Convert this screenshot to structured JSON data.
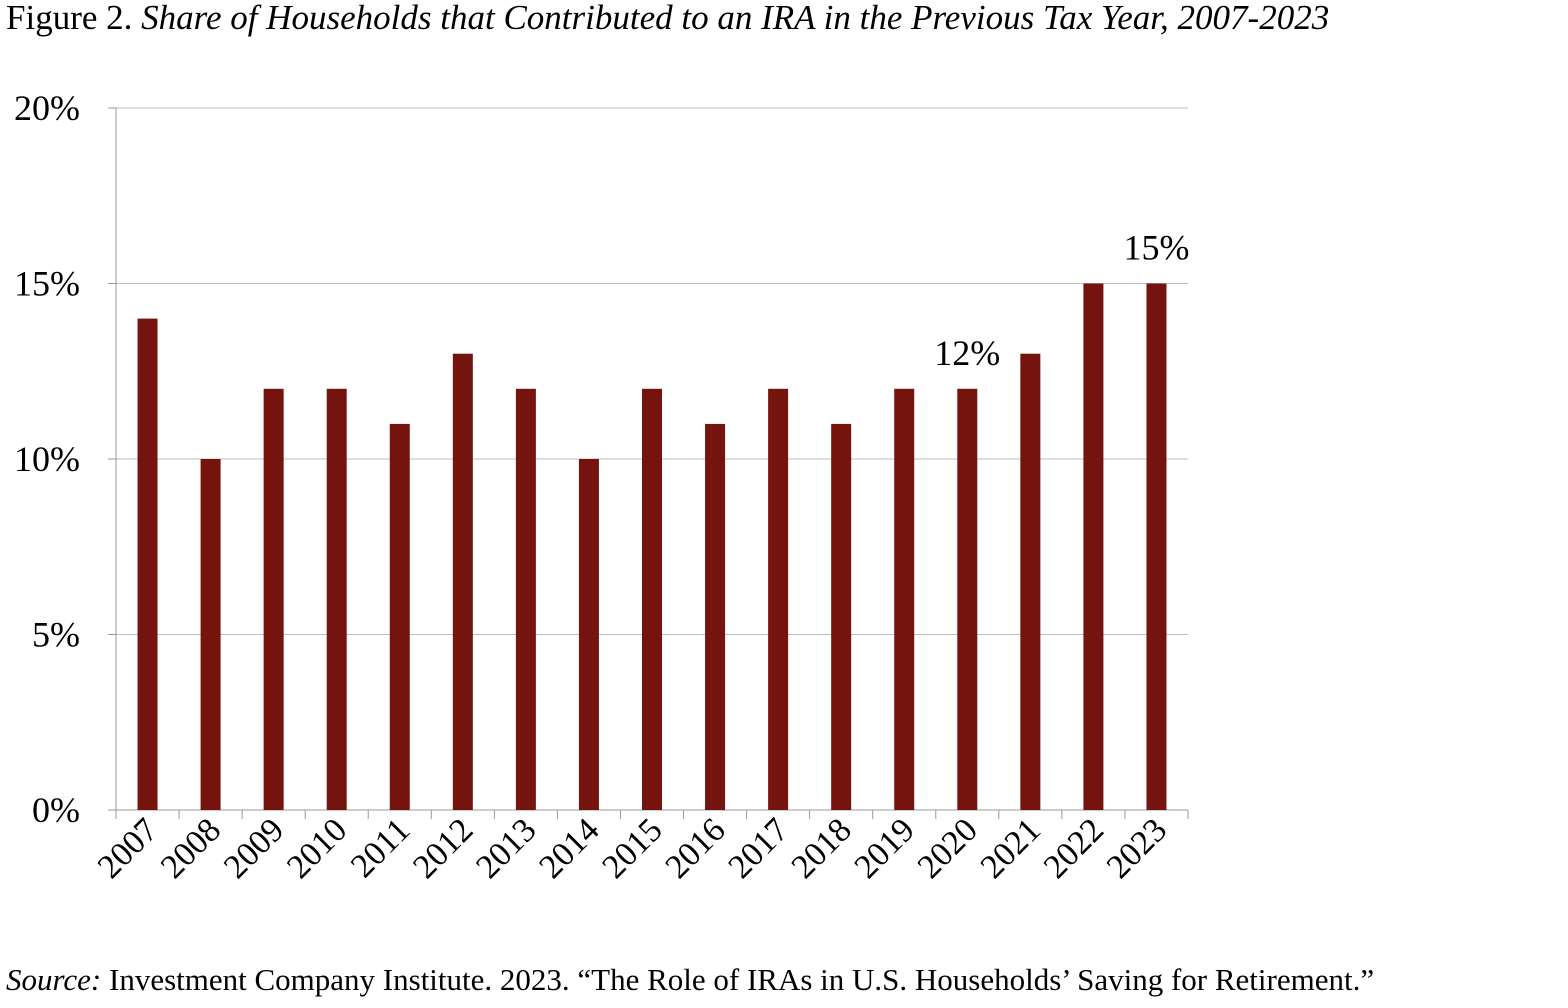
{
  "chart_data": {
    "type": "bar",
    "title_prefix": "Figure 2.",
    "title": "Share of Households that Contributed to an IRA in the Previous Tax Year, 2007-2023",
    "categories": [
      "2007",
      "2008",
      "2009",
      "2010",
      "2011",
      "2012",
      "2013",
      "2014",
      "2015",
      "2016",
      "2017",
      "2018",
      "2019",
      "2020",
      "2021",
      "2022",
      "2023"
    ],
    "values": [
      14,
      10,
      12,
      12,
      11,
      13,
      12,
      10,
      12,
      11,
      12,
      11,
      12,
      12,
      13,
      15,
      15
    ],
    "ylim": [
      0,
      20
    ],
    "yticks": [
      0,
      5,
      10,
      15,
      20
    ],
    "ytick_labels": [
      "0%",
      "5%",
      "10%",
      "15%",
      "20%"
    ],
    "xlabel": "",
    "ylabel": "",
    "grid": true,
    "bar_color": "#75140f",
    "annotations": [
      {
        "category": "2020",
        "text": "12%"
      },
      {
        "category": "2023",
        "text": "15%"
      }
    ]
  },
  "source": {
    "label": "Source:",
    "text": " Investment Company Institute. 2023. “The Role of IRAs in U.S. Households’ Saving for Retirement.”"
  }
}
